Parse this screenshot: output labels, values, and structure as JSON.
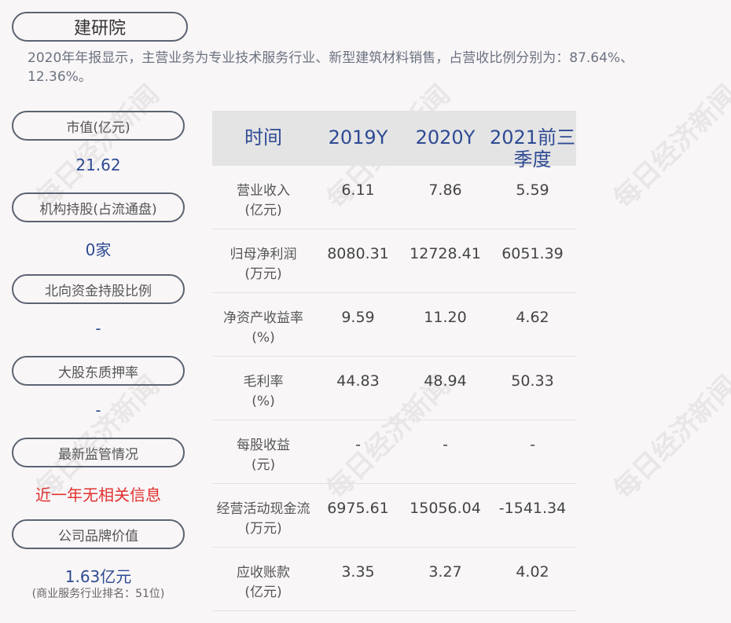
{
  "company": "建研院",
  "description": "2020年年报显示，主营业务为专业技术服务行业、新型建筑材料销售，占营收比例分别为：87.64%、12.36%。",
  "watermark": "每日经济新闻",
  "metrics": [
    {
      "label": "市值(亿元)",
      "value": "21.62"
    },
    {
      "label": "机构持股(占流通盘)",
      "value": "0家"
    },
    {
      "label": "北向资金持股比例",
      "value": "-"
    },
    {
      "label": "大股东质押率",
      "value": "-"
    },
    {
      "label": "最新监管情况",
      "value": "近一年无相关信息"
    },
    {
      "label": "公司品牌价值",
      "value": "1.63亿元",
      "note": "(商业服务行业排名：51位)"
    }
  ],
  "table": {
    "headers": [
      "时间",
      "2019Y",
      "2020Y",
      "2021前三季度"
    ],
    "rows": [
      {
        "label": "营业收入",
        "unit": "(亿元)",
        "values": [
          "6.11",
          "7.86",
          "5.59"
        ]
      },
      {
        "label": "归母净利润",
        "unit": "(万元)",
        "values": [
          "8080.31",
          "12728.41",
          "6051.39"
        ]
      },
      {
        "label": "净资产收益率",
        "unit": "(%)",
        "values": [
          "9.59",
          "11.20",
          "4.62"
        ]
      },
      {
        "label": "毛利率",
        "unit": "(%)",
        "values": [
          "44.83",
          "48.94",
          "50.33"
        ]
      },
      {
        "label": "每股收益",
        "unit": "(元)",
        "values": [
          "-",
          "-",
          "-"
        ]
      },
      {
        "label": "经营活动现金流",
        "unit": "(万元)",
        "values": [
          "6975.61",
          "15056.04",
          "-1541.34"
        ]
      },
      {
        "label": "应收账款",
        "unit": "(亿元)",
        "values": [
          "3.35",
          "3.27",
          "4.02"
        ]
      }
    ]
  },
  "colors": {
    "accent": "#2e4a94",
    "alert": "#e0302f",
    "header_bg": "#e4e4e4"
  }
}
